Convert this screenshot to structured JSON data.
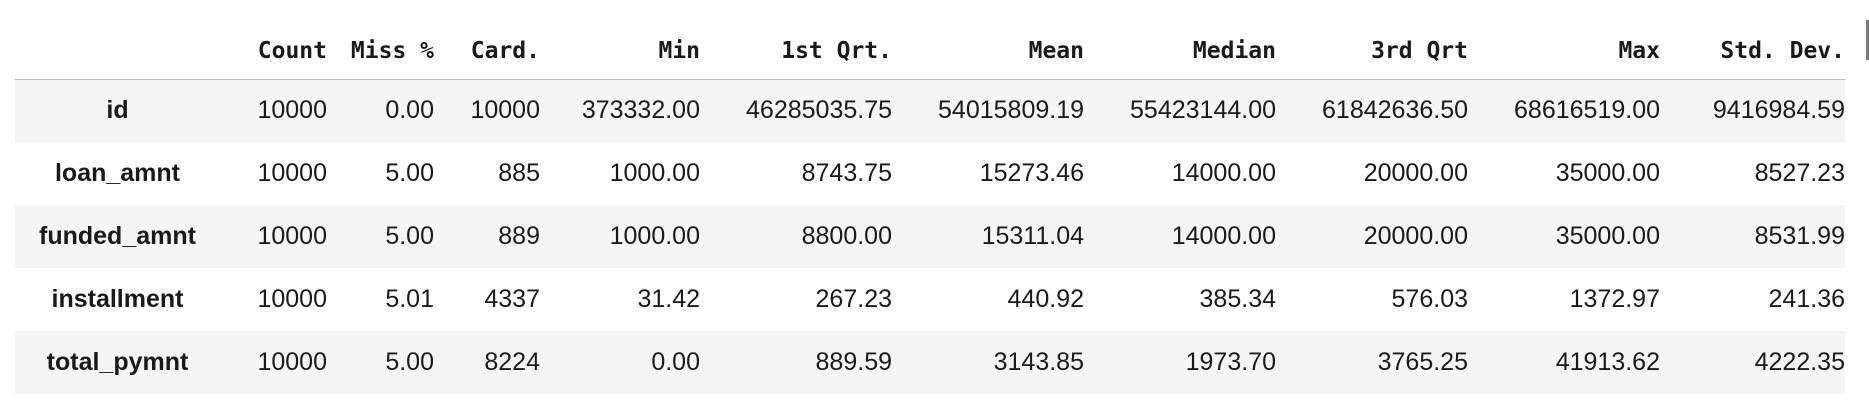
{
  "table": {
    "columns": [
      "Count",
      "Miss %",
      "Card.",
      "Min",
      "1st Qrt.",
      "Mean",
      "Median",
      "3rd Qrt",
      "Max",
      "Std. Dev."
    ],
    "rows": [
      {
        "label": "id",
        "cells": [
          "10000",
          "0.00",
          "10000",
          "373332.00",
          "46285035.75",
          "54015809.19",
          "55423144.00",
          "61842636.50",
          "68616519.00",
          "9416984.59"
        ]
      },
      {
        "label": "loan_amnt",
        "cells": [
          "10000",
          "5.00",
          "885",
          "1000.00",
          "8743.75",
          "15273.46",
          "14000.00",
          "20000.00",
          "35000.00",
          "8527.23"
        ]
      },
      {
        "label": "funded_amnt",
        "cells": [
          "10000",
          "5.00",
          "889",
          "1000.00",
          "8800.00",
          "15311.04",
          "14000.00",
          "20000.00",
          "35000.00",
          "8531.99"
        ]
      },
      {
        "label": "installment",
        "cells": [
          "10000",
          "5.01",
          "4337",
          "31.42",
          "267.23",
          "440.92",
          "385.34",
          "576.03",
          "1372.97",
          "241.36"
        ]
      },
      {
        "label": "total_pymnt",
        "cells": [
          "10000",
          "5.00",
          "8224",
          "0.00",
          "889.59",
          "3143.85",
          "1973.70",
          "3765.25",
          "41913.62",
          "4222.35"
        ]
      }
    ]
  }
}
